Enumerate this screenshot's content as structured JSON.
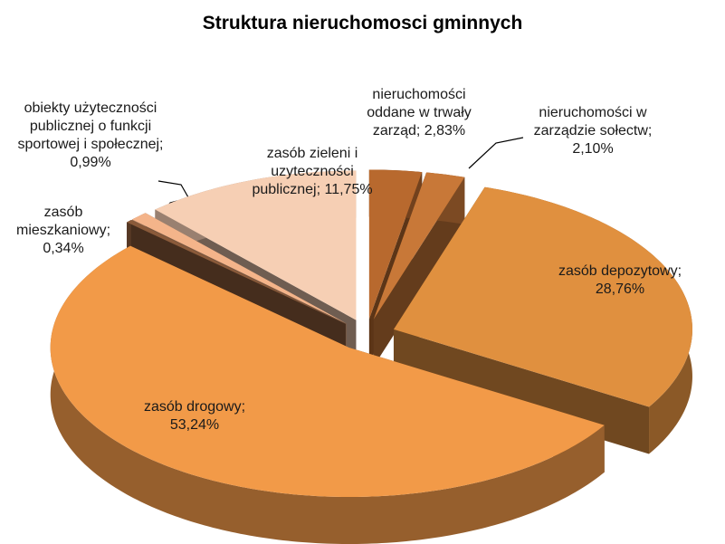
{
  "chart_data": {
    "type": "pie",
    "title": "Struktura nieruchomosci gminnych",
    "values": [
      2.83,
      2.1,
      28.76,
      53.24,
      0.34,
      0.99,
      11.75
    ],
    "value_labels": [
      "nieruchomości oddane w trwały zarząd; 2,83%",
      "nieruchomości w zarządzie sołectw; 2,10%",
      "zasób depozytowy; 28,76%",
      "zasób drogowy; 53,24%",
      "zasób mieszkaniowy; 0,34%",
      "obiekty użyteczności publicznej o funkcji sportowej i społecznej; 0,99%",
      "zasób zieleni i uzyteczności publicznej; 11,75%"
    ],
    "colors": [
      "#b8692e",
      "#c87838",
      "#e0903f",
      "#f29a48",
      "#8a5a3a",
      "#f4b48a",
      "#f6cfb4"
    ]
  }
}
